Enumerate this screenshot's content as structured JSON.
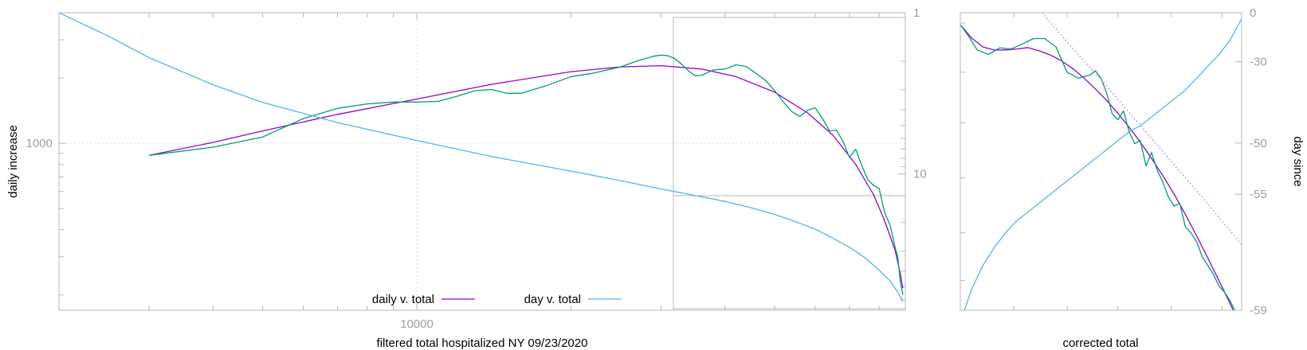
{
  "chart_data": [
    {
      "type": "line",
      "xlabel": "filtered total hospitalized NY 09/23/2020",
      "ylabel": "daily increase",
      "xscale": "log",
      "yscale": "log",
      "xlim": [
        2000,
        90000
      ],
      "ylim": [
        170,
        4000
      ],
      "y2scale": "log (inverted)",
      "y2lim": [
        1,
        70
      ],
      "xticklabels": [
        {
          "value": 10000,
          "label": "10000"
        }
      ],
      "yticklabels": [
        {
          "value": 1000,
          "label": "1000"
        }
      ],
      "y2ticklabels": [
        {
          "value": 1,
          "label": "1"
        },
        {
          "value": 10,
          "label": "10"
        }
      ],
      "grid": true,
      "legend_position": "bottom-center",
      "series": [
        {
          "name": "daily v. total",
          "axis": "y",
          "color": "#9400d3",
          "x": [
            3000,
            4000,
            5000,
            7000,
            10000,
            14000,
            20000,
            25000,
            30000,
            36000,
            42000,
            50000,
            58000,
            65000,
            72000,
            78000,
            82000,
            86000,
            88000,
            89000
          ],
          "y": [
            880,
            1010,
            1140,
            1360,
            1600,
            1870,
            2140,
            2250,
            2280,
            2200,
            2030,
            1720,
            1380,
            1090,
            800,
            580,
            440,
            320,
            250,
            215
          ]
        },
        {
          "name": "",
          "axis": "y",
          "color": "#009e73",
          "x": [
            3000,
            4000,
            5000,
            6000,
            7000,
            8000,
            9000,
            10000,
            11000,
            12000,
            13000,
            14000,
            15000,
            16000,
            18000,
            20000,
            22000,
            25000,
            27000,
            29000,
            30000,
            31000,
            32000,
            33000,
            34000,
            35000,
            36000,
            38000,
            40000,
            42000,
            44000,
            46000,
            48000,
            50000,
            52000,
            54000,
            56000,
            58000,
            60000,
            62000,
            64000,
            66000,
            68000,
            70000,
            72000,
            74000,
            76000,
            78000,
            80000,
            82000,
            84000,
            86000,
            87000,
            88000,
            89000
          ],
          "y": [
            880,
            960,
            1070,
            1300,
            1450,
            1520,
            1550,
            1550,
            1560,
            1650,
            1750,
            1770,
            1700,
            1700,
            1850,
            2030,
            2100,
            2250,
            2400,
            2520,
            2550,
            2530,
            2450,
            2300,
            2150,
            2050,
            2060,
            2180,
            2200,
            2300,
            2260,
            2100,
            1950,
            1750,
            1550,
            1400,
            1330,
            1420,
            1460,
            1300,
            1140,
            1150,
            1020,
            860,
            940,
            790,
            680,
            640,
            620,
            480,
            420,
            330,
            300,
            230,
            200
          ]
        },
        {
          "name": "day v. total",
          "axis": "y2",
          "color": "#56b4e9",
          "x": [
            2000,
            2500,
            3000,
            4000,
            5000,
            7000,
            10000,
            14000,
            20000,
            25000,
            30000,
            35000,
            40000,
            45000,
            50000,
            55000,
            60000,
            65000,
            70000,
            75000,
            80000,
            84000,
            87000,
            89000
          ],
          "y": [
            1,
            1.4,
            1.9,
            2.8,
            3.6,
            4.8,
            6.2,
            7.8,
            9.6,
            11,
            12.4,
            13.6,
            14.8,
            16.2,
            17.8,
            19.8,
            22,
            25,
            28.5,
            33,
            39.5,
            46,
            54,
            62
          ]
        }
      ]
    },
    {
      "type": "line",
      "xlabel": "corrected total",
      "ylabel": "day since",
      "yaxis_position": "right",
      "xlim": [
        0,
        1
      ],
      "yticklabels": [
        {
          "value": 0,
          "label": "0"
        },
        {
          "value": -30,
          "label": "-30"
        },
        {
          "value": -50,
          "label": "-50"
        },
        {
          "value": -55,
          "label": "-55"
        },
        {
          "value": -59,
          "label": "-59"
        }
      ],
      "series": [
        {
          "name": "",
          "color": "#9400d3",
          "x": [
            0,
            0.04,
            0.08,
            0.12,
            0.16,
            0.2,
            0.24,
            0.28,
            0.32,
            0.36,
            0.4,
            0.44,
            0.48,
            0.52,
            0.56,
            0.6,
            0.64,
            0.68,
            0.72,
            0.76,
            0.8,
            0.84,
            0.88,
            0.92,
            0.95,
            0.97,
            0.99
          ],
          "y": [
            0.96,
            0.915,
            0.885,
            0.875,
            0.875,
            0.878,
            0.883,
            0.872,
            0.858,
            0.838,
            0.812,
            0.78,
            0.744,
            0.705,
            0.662,
            0.615,
            0.565,
            0.51,
            0.452,
            0.39,
            0.322,
            0.25,
            0.175,
            0.098,
            0.04,
            0.0,
            -0.05
          ]
        },
        {
          "name": "",
          "color": "#009e73",
          "x": [
            0,
            0.03,
            0.06,
            0.1,
            0.14,
            0.18,
            0.22,
            0.26,
            0.3,
            0.34,
            0.38,
            0.42,
            0.46,
            0.48,
            0.5,
            0.52,
            0.54,
            0.56,
            0.58,
            0.6,
            0.62,
            0.64,
            0.66,
            0.68,
            0.7,
            0.72,
            0.74,
            0.76,
            0.78,
            0.8,
            0.82,
            0.84,
            0.86,
            0.88,
            0.9,
            0.92,
            0.94,
            0.96,
            0.97,
            0.98,
            0.99,
            1.0
          ],
          "y": [
            0.96,
            0.92,
            0.875,
            0.86,
            0.882,
            0.878,
            0.895,
            0.913,
            0.913,
            0.885,
            0.8,
            0.78,
            0.79,
            0.805,
            0.78,
            0.73,
            0.66,
            0.64,
            0.67,
            0.6,
            0.56,
            0.57,
            0.485,
            0.53,
            0.47,
            0.43,
            0.38,
            0.35,
            0.36,
            0.28,
            0.26,
            0.23,
            0.18,
            0.15,
            0.12,
            0.08,
            0.06,
            0.03,
            0.01,
            -0.01,
            -0.02,
            -0.04
          ]
        },
        {
          "name": "",
          "color": "#56b4e9",
          "x": [
            0,
            0.04,
            0.08,
            0.12,
            0.16,
            0.2,
            0.24,
            0.28,
            0.32,
            0.36,
            0.4,
            0.44,
            0.48,
            0.52,
            0.56,
            0.6,
            0.64,
            0.68,
            0.72,
            0.76,
            0.8,
            0.84,
            0.88,
            0.92,
            0.96,
            1.0
          ],
          "y": [
            -0.04,
            0.07,
            0.15,
            0.21,
            0.26,
            0.3,
            0.33,
            0.36,
            0.39,
            0.42,
            0.45,
            0.48,
            0.51,
            0.54,
            0.57,
            0.6,
            0.62,
            0.65,
            0.68,
            0.71,
            0.74,
            0.78,
            0.82,
            0.86,
            0.91,
            0.98
          ]
        },
        {
          "name": "",
          "color": "#b266e6",
          "style": "dotted",
          "x": [
            0.29,
            0.4,
            0.5,
            0.6,
            0.7,
            0.8,
            0.9,
            1.0
          ],
          "y": [
            1.0,
            0.88,
            0.775,
            0.665,
            0.555,
            0.445,
            0.335,
            0.22
          ]
        }
      ]
    }
  ]
}
